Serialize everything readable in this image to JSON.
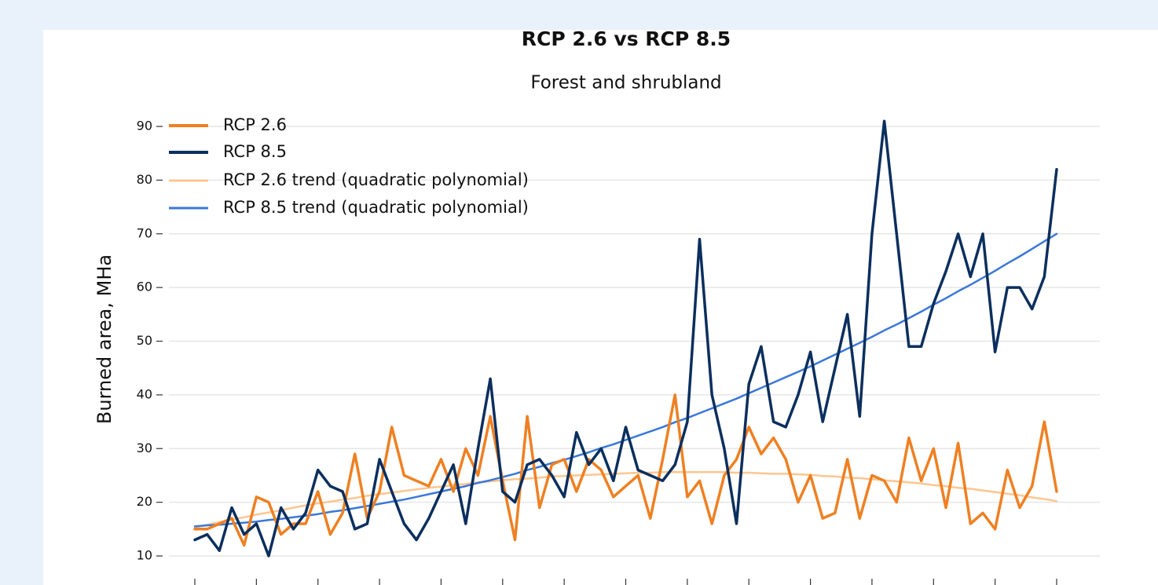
{
  "chart_data": {
    "type": "line",
    "title": "RCP 2.6 vs RCP 8.5",
    "subtitle": "Forest and shrubland",
    "y_label": "Burned area, MHa",
    "categories": [
      null,
      null,
      null,
      null,
      null,
      null,
      null,
      null,
      null,
      null,
      null,
      null,
      null,
      null,
      null,
      null,
      null,
      null,
      null,
      null,
      null,
      null,
      null,
      null,
      null,
      null,
      null,
      null,
      null,
      null,
      null,
      null,
      null,
      null,
      null,
      null,
      null,
      null,
      null,
      null,
      null,
      null,
      null,
      null,
      null,
      null,
      null,
      null,
      null,
      null,
      null,
      null,
      null,
      null,
      null,
      null,
      null,
      null,
      null,
      null,
      null,
      null,
      null,
      null,
      null,
      null,
      null,
      null,
      null,
      null,
      null
    ],
    "series": [
      {
        "name": "RCP 2.6",
        "color": "#ef8022",
        "width": 3.5,
        "values": [
          15,
          15,
          16,
          17,
          12,
          21,
          20,
          14,
          16,
          16,
          22,
          14,
          18,
          29,
          17,
          22,
          34,
          25,
          24,
          23,
          28,
          22,
          30,
          25,
          36,
          24,
          13,
          36,
          19,
          27,
          28,
          22,
          28,
          26,
          21,
          23,
          25,
          17,
          28,
          40,
          21,
          24,
          16,
          25,
          28,
          34,
          29,
          32,
          28,
          20,
          25,
          17,
          18,
          28,
          17,
          25,
          24,
          20,
          32,
          24,
          30,
          19,
          31,
          16,
          18,
          15,
          26,
          19,
          23,
          35,
          22
        ]
      },
      {
        "name": "RCP 8.5",
        "color": "#0b2f5e",
        "width": 3.5,
        "values": [
          13,
          14,
          11,
          19,
          14,
          16,
          10,
          19,
          15,
          18,
          26,
          23,
          22,
          15,
          16,
          28,
          22,
          16,
          13,
          17,
          22,
          27,
          16,
          30,
          43,
          22,
          20,
          27,
          28,
          25,
          21,
          33,
          27,
          30,
          24,
          34,
          26,
          25,
          24,
          27,
          35,
          69,
          40,
          30,
          16,
          42,
          49,
          35,
          34,
          40,
          48,
          35,
          45,
          55,
          36,
          70,
          91,
          70,
          49,
          49,
          57,
          63,
          70,
          62,
          70,
          48,
          60,
          60,
          56,
          62,
          82
        ]
      },
      {
        "name": "RCP 2.6 trend (quadratic polynomial)",
        "color": "#fdc690",
        "width": 2.5,
        "values": [
          15.3,
          15.8,
          16.3,
          16.8,
          17.2,
          17.7,
          18.1,
          18.5,
          19.0,
          19.4,
          19.8,
          20.1,
          20.5,
          20.8,
          21.2,
          21.5,
          21.8,
          22.1,
          22.4,
          22.7,
          22.9,
          23.2,
          23.4,
          23.7,
          23.9,
          24.1,
          24.3,
          24.4,
          24.6,
          24.8,
          24.9,
          25.0,
          25.1,
          25.2,
          25.3,
          25.4,
          25.5,
          25.5,
          25.6,
          25.6,
          25.6,
          25.6,
          25.6,
          25.6,
          25.5,
          25.5,
          25.4,
          25.3,
          25.3,
          25.2,
          25.1,
          24.9,
          24.8,
          24.6,
          24.5,
          24.3,
          24.1,
          23.9,
          23.7,
          23.5,
          23.2,
          23.0,
          22.7,
          22.5,
          22.2,
          21.9,
          21.6,
          21.3,
          20.9,
          20.6,
          20.2
        ]
      },
      {
        "name": "RCP 8.5 trend (quadratic polynomial)",
        "color": "#3a78d8",
        "width": 2.5,
        "values": [
          15.5,
          15.7,
          15.8,
          16.0,
          16.2,
          16.4,
          16.7,
          16.9,
          17.2,
          17.5,
          17.8,
          18.2,
          18.5,
          18.9,
          19.3,
          19.7,
          20.1,
          20.5,
          21.0,
          21.5,
          22.0,
          22.5,
          23.0,
          23.6,
          24.1,
          24.7,
          25.3,
          26.0,
          26.6,
          27.3,
          27.9,
          28.6,
          29.3,
          30.1,
          30.8,
          31.6,
          32.4,
          33.2,
          34.0,
          34.9,
          35.7,
          36.6,
          37.5,
          38.4,
          39.3,
          40.3,
          41.3,
          42.3,
          43.3,
          44.3,
          45.3,
          46.4,
          47.5,
          48.6,
          49.7,
          50.8,
          52.0,
          53.1,
          54.3,
          55.5,
          56.8,
          58.0,
          59.3,
          60.5,
          61.8,
          63.1,
          64.5,
          65.8,
          67.2,
          68.6,
          70.0
        ]
      }
    ],
    "ylim": [
      10,
      90
    ],
    "yticks": [
      10,
      20,
      30,
      40,
      50,
      60,
      70,
      80,
      90
    ],
    "grid": true,
    "legend": "upper left"
  }
}
